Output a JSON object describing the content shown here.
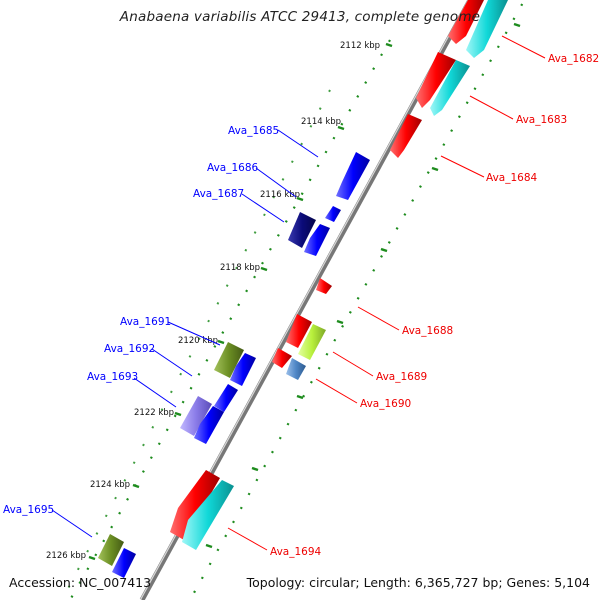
{
  "map": {
    "title": "Anabaena variabilis ATCC 29413, complete genome",
    "accession_label": "Accession: NC_007413",
    "summary_label": "Topology: circular; Length: 6,365,727 bp; Genes: 5,104"
  },
  "positions": [
    "2112 kbp",
    "2114 kbp",
    "2116 kbp",
    "2118 kbp",
    "2120 kbp",
    "2122 kbp",
    "2124 kbp",
    "2126 kbp"
  ],
  "genes_left": [
    "Ava_1685",
    "Ava_1686",
    "Ava_1687",
    "Ava_1691",
    "Ava_1692",
    "Ava_1693",
    "Ava_1695"
  ],
  "genes_right": [
    "Ava_1682",
    "Ava_1683",
    "Ava_1684",
    "Ava_1688",
    "Ava_1689",
    "Ava_1690",
    "Ava_1694"
  ],
  "colors": {
    "forward_gene": "#ff0000",
    "reverse_gene": "#0000ff",
    "cds_cyan": "#00d8d8",
    "cds_green": "#6b8e23",
    "cds_lime": "#b8f03c",
    "cds_purple": "#8a7be8",
    "cds_navy": "#0b0b7a",
    "cds_steel": "#4f86c6",
    "backbone": "#888888",
    "tick": "#1e8c1e"
  }
}
